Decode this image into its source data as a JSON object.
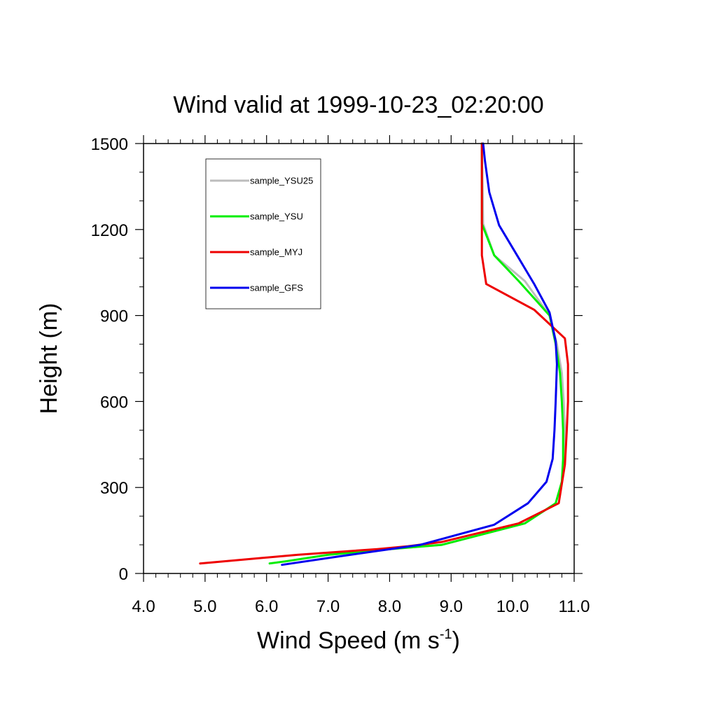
{
  "chart_data": {
    "type": "line",
    "title": "Wind valid at 1999-10-23_02:20:00",
    "xlabel_main": "Wind Speed (m s",
    "xlabel_sup": "-1",
    "xlabel_close": ")",
    "ylabel": "Height (m)",
    "xlim": [
      4.0,
      11.0
    ],
    "ylim": [
      0,
      1500
    ],
    "xticks": [
      4.0,
      5.0,
      6.0,
      7.0,
      8.0,
      9.0,
      10.0,
      11.0
    ],
    "xtick_labels": [
      "4.0",
      "5.0",
      "6.0",
      "7.0",
      "8.0",
      "9.0",
      "10.0",
      "11.0"
    ],
    "yticks": [
      0,
      300,
      600,
      900,
      1200,
      1500
    ],
    "ytick_labels": [
      "0",
      "300",
      "600",
      "900",
      "1200",
      "1500"
    ],
    "grid": false,
    "legend_position": "top-left",
    "series": [
      {
        "name": "sample_YSU25",
        "color": "#bdbdbd",
        "points": [
          [
            6.05,
            35
          ],
          [
            6.3,
            42
          ],
          [
            7.0,
            65
          ],
          [
            8.0,
            85
          ],
          [
            8.85,
            100
          ],
          [
            10.2,
            175
          ],
          [
            10.7,
            245
          ],
          [
            10.8,
            320
          ],
          [
            10.85,
            400
          ],
          [
            10.85,
            500
          ],
          [
            10.83,
            600
          ],
          [
            10.8,
            700
          ],
          [
            10.72,
            800
          ],
          [
            10.6,
            900
          ],
          [
            10.2,
            1020
          ],
          [
            9.7,
            1110
          ],
          [
            9.52,
            1220
          ],
          [
            9.5,
            1500
          ]
        ]
      },
      {
        "name": "sample_YSU",
        "color": "#00ee00",
        "points": [
          [
            6.05,
            35
          ],
          [
            6.3,
            42
          ],
          [
            7.0,
            65
          ],
          [
            8.0,
            85
          ],
          [
            8.85,
            100
          ],
          [
            10.2,
            175
          ],
          [
            10.7,
            245
          ],
          [
            10.8,
            320
          ],
          [
            10.82,
            400
          ],
          [
            10.82,
            500
          ],
          [
            10.8,
            600
          ],
          [
            10.77,
            700
          ],
          [
            10.7,
            800
          ],
          [
            10.6,
            900
          ],
          [
            10.1,
            1020
          ],
          [
            9.7,
            1110
          ],
          [
            9.5,
            1220
          ],
          [
            9.5,
            1500
          ]
        ]
      },
      {
        "name": "sample_MYJ",
        "color": "#ee0000",
        "points": [
          [
            4.92,
            35
          ],
          [
            6.5,
            65
          ],
          [
            7.8,
            85
          ],
          [
            8.3,
            95
          ],
          [
            8.85,
            110
          ],
          [
            10.1,
            175
          ],
          [
            10.75,
            245
          ],
          [
            10.85,
            380
          ],
          [
            10.88,
            500
          ],
          [
            10.9,
            600
          ],
          [
            10.9,
            730
          ],
          [
            10.85,
            820
          ],
          [
            10.35,
            920
          ],
          [
            9.57,
            1010
          ],
          [
            9.5,
            1110
          ],
          [
            9.5,
            1220
          ],
          [
            9.5,
            1500
          ]
        ]
      },
      {
        "name": "sample_GFS",
        "color": "#0000ee",
        "points": [
          [
            6.25,
            30
          ],
          [
            7.2,
            60
          ],
          [
            8.5,
            100
          ],
          [
            9.7,
            170
          ],
          [
            10.25,
            245
          ],
          [
            10.55,
            320
          ],
          [
            10.65,
            400
          ],
          [
            10.68,
            500
          ],
          [
            10.7,
            600
          ],
          [
            10.72,
            730
          ],
          [
            10.7,
            810
          ],
          [
            10.6,
            910
          ],
          [
            10.35,
            1010
          ],
          [
            10.1,
            1100
          ],
          [
            9.78,
            1215
          ],
          [
            9.62,
            1330
          ],
          [
            9.55,
            1440
          ],
          [
            9.52,
            1500
          ]
        ]
      }
    ]
  }
}
